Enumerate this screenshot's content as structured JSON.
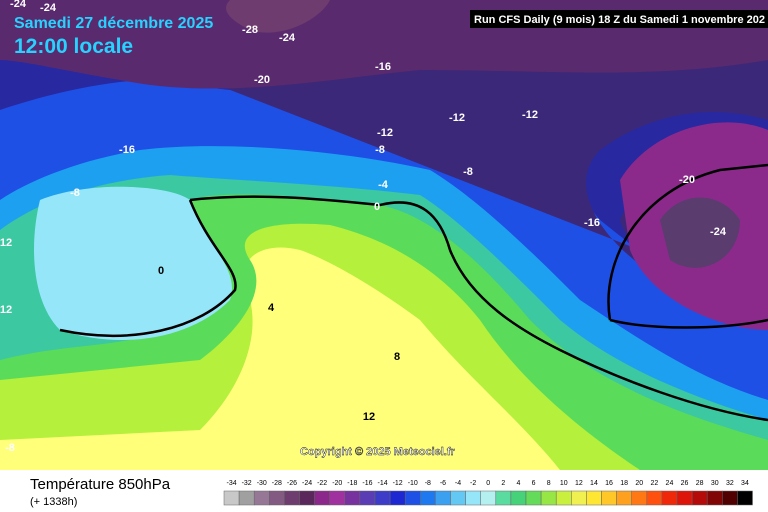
{
  "header": {
    "date": "Samedi 27 décembre 2025",
    "time": "12:00 locale",
    "run": "Run CFS Daily (9 mois) 18 Z du Samedi 1 novembre 202"
  },
  "copyright": "Copyright © 2025 Meteociel.fr",
  "footer": {
    "title": "Température 850hPa",
    "lead": "(+ 1338h)"
  },
  "contour_labels": [
    -24,
    -24,
    -28,
    -24,
    -20,
    -16,
    -12,
    -12,
    -12,
    -16,
    -8,
    -8,
    -4,
    -8,
    0,
    -20,
    -16,
    -24,
    12,
    0,
    12,
    4,
    8,
    12,
    -8
  ],
  "color_scale": {
    "values": [
      -34,
      -32,
      -30,
      -28,
      -26,
      -24,
      -22,
      -20,
      -18,
      -16,
      -14,
      -12,
      -10,
      -8,
      -6,
      -4,
      -2,
      0,
      2,
      4,
      6,
      8,
      10,
      12,
      14,
      16,
      18,
      20,
      22,
      24,
      26,
      28,
      30,
      32,
      34
    ],
    "colors": [
      "#c8c8c8",
      "#a0a0a0",
      "#967896",
      "#825a82",
      "#6e3c6e",
      "#5a285a",
      "#8c288c",
      "#a032a0",
      "#7832a0",
      "#5a3cb4",
      "#3c3cc8",
      "#1e28d2",
      "#1e50e6",
      "#1e78f0",
      "#3ca0f0",
      "#64c8f5",
      "#96e6fa",
      "#b4f0f0",
      "#5adca0",
      "#46d278",
      "#64dc5a",
      "#96e646",
      "#c8f03c",
      "#f0f050",
      "#ffe632",
      "#ffc828",
      "#ffa01e",
      "#ff7814",
      "#ff500f",
      "#f0280a",
      "#dc140a",
      "#b40a0a",
      "#820505",
      "#500000",
      "#000000"
    ]
  }
}
